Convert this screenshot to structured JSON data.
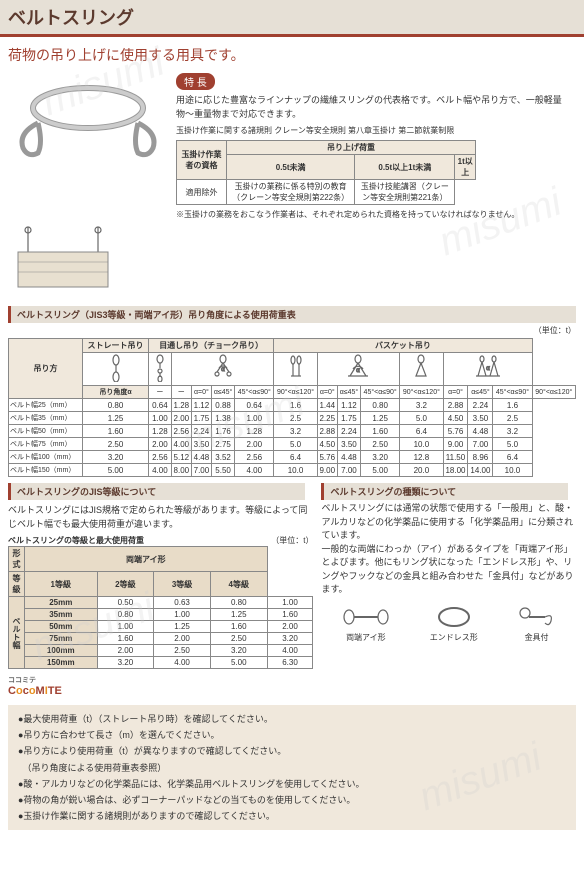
{
  "title": "ベルトスリング",
  "subtitle": "荷物の吊り上げに使用する用具です。",
  "feature": {
    "label": "特 長",
    "text": "用途に応じた豊富なラインナップの繊維スリングの代表格です。ベルト幅や吊り方で、一般軽量物〜重量物まで対応できます。"
  },
  "qual_note": "玉掛け作業に関する諸規則 クレーン等安全規則 第八章玉掛け 第二節就業制限",
  "qual_table": {
    "header_top": "吊り上げ荷重",
    "cols": [
      "0.5t未満",
      "0.5t以上1t未満",
      "1t以上"
    ],
    "row_label": "玉掛け作業者の資格",
    "cells": [
      "適用除外",
      "玉掛けの業務に係る特別の教育（クレーン等安全規則第222条）",
      "玉掛け技能講習（クレーン等安全規則第221条）"
    ]
  },
  "qual_footnote": "※玉掛けの業務をおこなう作業者は、それぞれ定められた資格を持っていなければなりません。",
  "load_section": {
    "label": "ベルトスリング（JIS3等級・両端アイ形）吊り角度による使用荷重表",
    "unit": "（単位：t）",
    "lift_types": [
      "ストレート吊り",
      "目通し吊り（チョーク吊り）",
      "バスケット吊り"
    ],
    "row_label": "吊り方",
    "angle_label": "吊り角度α",
    "angle_cols": [
      "ー",
      "ー",
      "α=0°",
      "α≤45°",
      "45°<α≤90°",
      "90°<α≤120°",
      "α=0°",
      "α≤45°",
      "45°<α≤90°",
      "90°<α≤120°",
      "α=0°",
      "α≤45°",
      "45°<α≤90°",
      "90°<α≤120°"
    ],
    "rows": [
      {
        "label": "ベルト幅25（mm）",
        "v": [
          "0.80",
          "0.64",
          "1.28",
          "1.12",
          "0.88",
          "0.64",
          "1.6",
          "1.44",
          "1.12",
          "0.80",
          "3.2",
          "2.88",
          "2.24",
          "1.6"
        ]
      },
      {
        "label": "ベルト幅35（mm）",
        "v": [
          "1.25",
          "1.00",
          "2.00",
          "1.75",
          "1.38",
          "1.00",
          "2.5",
          "2.25",
          "1.75",
          "1.25",
          "5.0",
          "4.50",
          "3.50",
          "2.5"
        ]
      },
      {
        "label": "ベルト幅50（mm）",
        "v": [
          "1.60",
          "1.28",
          "2.56",
          "2.24",
          "1.76",
          "1.28",
          "3.2",
          "2.88",
          "2.24",
          "1.60",
          "6.4",
          "5.76",
          "4.48",
          "3.2"
        ]
      },
      {
        "label": "ベルト幅75（mm）",
        "v": [
          "2.50",
          "2.00",
          "4.00",
          "3.50",
          "2.75",
          "2.00",
          "5.0",
          "4.50",
          "3.50",
          "2.50",
          "10.0",
          "9.00",
          "7.00",
          "5.0"
        ]
      },
      {
        "label": "ベルト幅100（mm）",
        "v": [
          "3.20",
          "2.56",
          "5.12",
          "4.48",
          "3.52",
          "2.56",
          "6.4",
          "5.76",
          "4.48",
          "3.20",
          "12.8",
          "11.50",
          "8.96",
          "6.4"
        ]
      },
      {
        "label": "ベルト幅150（mm）",
        "v": [
          "5.00",
          "4.00",
          "8.00",
          "7.00",
          "5.50",
          "4.00",
          "10.0",
          "9.00",
          "7.00",
          "5.00",
          "20.0",
          "18.00",
          "14.00",
          "10.0"
        ]
      }
    ]
  },
  "jis_section": {
    "label": "ベルトスリングのJIS等級について",
    "text": "ベルトスリングにはJIS規格で定められた等級があります。等級によって同じベルト幅でも最大使用荷重が違います。",
    "sublabel": "ベルトスリングの等級と最大使用荷重",
    "unit": "（単位：t）",
    "form": "形式",
    "grade": "等級",
    "type_header": "両端アイ形",
    "grades": [
      "1等級",
      "2等級",
      "3等級",
      "4等級"
    ],
    "width_label": "ベルト幅",
    "rows": [
      {
        "w": "25mm",
        "v": [
          "0.50",
          "0.63",
          "0.80",
          "1.00"
        ]
      },
      {
        "w": "35mm",
        "v": [
          "0.80",
          "1.00",
          "1.25",
          "1.60"
        ]
      },
      {
        "w": "50mm",
        "v": [
          "1.00",
          "1.25",
          "1.60",
          "2.00"
        ]
      },
      {
        "w": "75mm",
        "v": [
          "1.60",
          "2.00",
          "2.50",
          "3.20"
        ]
      },
      {
        "w": "100mm",
        "v": [
          "2.00",
          "2.50",
          "3.20",
          "4.00"
        ]
      },
      {
        "w": "150mm",
        "v": [
          "3.20",
          "4.00",
          "5.00",
          "6.30"
        ]
      }
    ]
  },
  "types_section": {
    "label": "ベルトスリングの種類について",
    "text": "ベルトスリングには通常の状態で使用する「一般用」と、酸・アルカリなどの化学薬品に使用する「化学薬品用」に分類されています。\n一般的な両端にわっか（アイ）があるタイプを「両端アイ形」とよびます。他にもリング状になった「エンドレス形」や、リングやフックなどの金具と組み合わせた「金具付」などがあります。",
    "types": [
      "両端アイ形",
      "エンドレス形",
      "金具付"
    ]
  },
  "coco": "CocoMITE",
  "coco_sub": "ココミテ",
  "notes": [
    "●最大使用荷重（t）（ストレート吊り時）を確認してください。",
    "●吊り方に合わせて長さ（m）を選んでください。",
    "●吊り方により使用荷重（t）が異なりますので確認してください。",
    "　（吊り角度による使用荷重表参照）",
    "●酸・アルカリなどの化学薬品には、化学薬品用ベルトスリングを使用してください。",
    "●荷物の角が鋭い場合は、必ずコーナーパッドなどの当てものを使用してください。",
    "●玉掛け作業に関する諸規則がありますので確認してください。"
  ],
  "colors": {
    "accent": "#a04030",
    "bg_header": "#e6e0d6",
    "bg_table": "#f0e8dc"
  }
}
